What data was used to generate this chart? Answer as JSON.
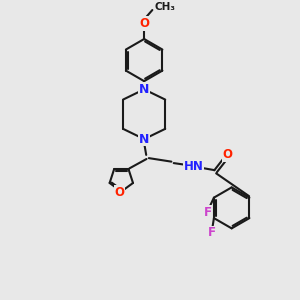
{
  "bg_color": "#e8e8e8",
  "bond_color": "#1a1a1a",
  "nitrogen_color": "#2222ff",
  "oxygen_color": "#ff2200",
  "fluorine_color": "#cc44cc",
  "xlim": [
    0,
    10
  ],
  "ylim": [
    0,
    10
  ],
  "figsize": [
    3.0,
    3.0
  ],
  "dpi": 100
}
